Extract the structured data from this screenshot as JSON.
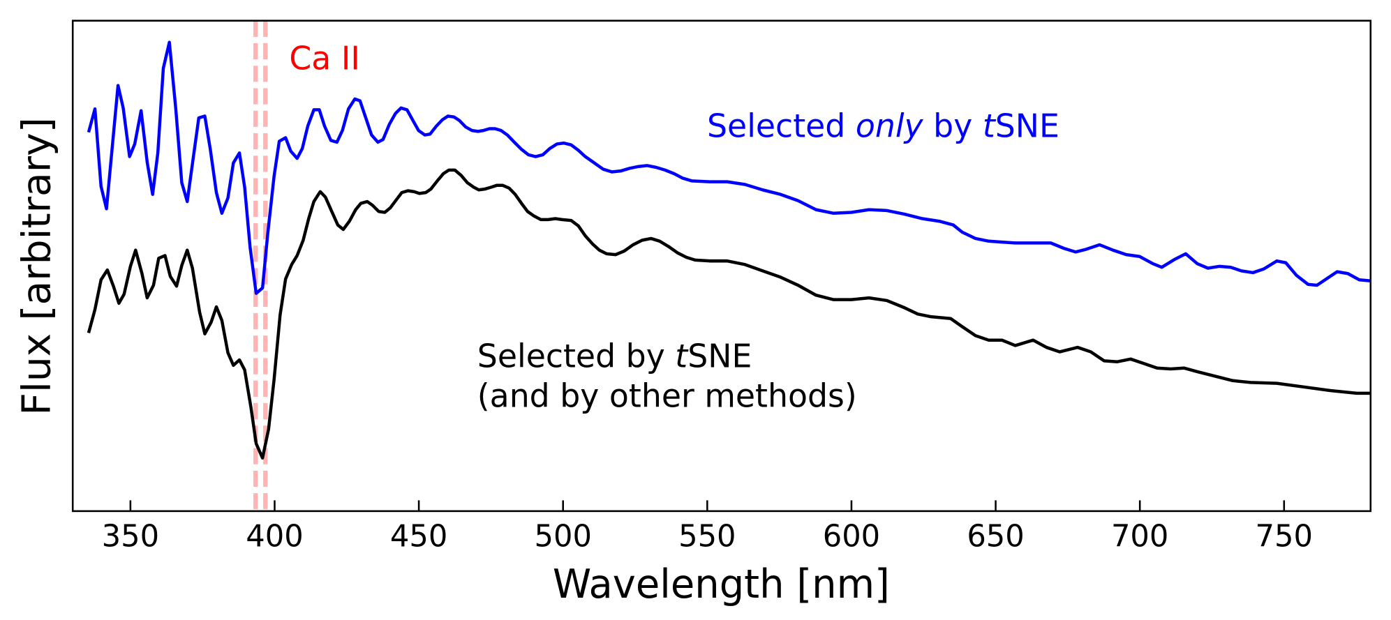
{
  "chart_data": {
    "type": "line",
    "xlabel": "Wavelength [nm]",
    "ylabel": "Flux [arbitrary]",
    "xlim": [
      330,
      780
    ],
    "xticks": [
      350,
      400,
      450,
      500,
      550,
      600,
      650,
      700,
      750
    ],
    "ylim": [
      0,
      545
    ],
    "grid": false,
    "vlines": [
      393.4,
      396.8
    ],
    "vline_color": "#ffb3b3",
    "vline_style": "dashed",
    "series": [
      {
        "color": "#0000ff",
        "x": [
          335.5,
          337.7,
          339.8,
          341.7,
          343.8,
          345.7,
          347.5,
          349.7,
          351.5,
          353.7,
          355.8,
          357.7,
          359.5,
          361.4,
          363.5,
          365.7,
          367.8,
          369.7,
          371.8,
          373.7,
          375.8,
          377.7,
          379.8,
          381.7,
          383.8,
          385.7,
          387.8,
          389.6,
          391.5,
          393.6,
          395.8,
          397.6,
          399.8,
          401.6,
          403.8,
          405.6,
          407.8,
          409.6,
          411.5,
          413.6,
          415.5,
          417.3,
          419.5,
          421.6,
          423.5,
          425.6,
          427.8,
          429.6,
          431.5,
          433.6,
          435.8,
          437.6,
          439.8,
          441.9,
          443.8,
          445.9,
          447.8,
          449.9,
          452.1,
          453.9,
          456.1,
          458.2,
          460.1,
          462.2,
          464.1,
          466.2,
          468.4,
          470.5,
          472.4,
          474.5,
          476.4,
          478.5,
          480.7,
          483.1,
          485.6,
          488.0,
          490.5,
          493.0,
          495.4,
          497.9,
          500.3,
          502.8,
          505.3,
          507.7,
          510.8,
          513.9,
          516.9,
          520.0,
          523.1,
          526.2,
          529.2,
          532.3,
          535.4,
          538.5,
          541.5,
          544.6,
          550.8,
          556.9,
          563.1,
          569.2,
          575.4,
          581.5,
          587.7,
          593.8,
          600.0,
          606.1,
          612.3,
          618.4,
          624.6,
          630.7,
          635.3,
          638.4,
          643.0,
          647.6,
          652.2,
          656.8,
          661.4,
          664.5,
          669.1,
          673.7,
          677.7,
          681.4,
          686.0,
          690.7,
          695.3,
          699.9,
          704.5,
          707.6,
          712.2,
          715.9,
          719.9,
          723.6,
          727.5,
          731.5,
          735.2,
          739.2,
          742.9,
          747.5,
          750.6,
          754.3,
          758.3,
          761.4,
          765.1,
          768.4,
          772.1,
          776.1,
          779.8
        ],
        "values": [
          421,
          447,
          361,
          336,
          408,
          473,
          448,
          394,
          408,
          445,
          388,
          352,
          398,
          492,
          521,
          448,
          365,
          344,
          393,
          437,
          439,
          402,
          354,
          331,
          348,
          387,
          398,
          360,
          293,
          242,
          248,
          308,
          372,
          411,
          415,
          400,
          392,
          403,
          428,
          446,
          446,
          428,
          412,
          410,
          423,
          447,
          458,
          456,
          438,
          418,
          410,
          413,
          430,
          442,
          448,
          446,
          435,
          423,
          418,
          419,
          428,
          435,
          439,
          438,
          434,
          427,
          423,
          422,
          423,
          425,
          425,
          423,
          418,
          410,
          402,
          396,
          394,
          396,
          403,
          408,
          409,
          407,
          401,
          394,
          387,
          380,
          377,
          378,
          381,
          383,
          384,
          382,
          379,
          375,
          370,
          367,
          366,
          366,
          363,
          357,
          352,
          345,
          335,
          331,
          332,
          335,
          334,
          330,
          325,
          322,
          318,
          310,
          303,
          300,
          299,
          298,
          298,
          298,
          298,
          292,
          288,
          291,
          296,
          290,
          285,
          283,
          275,
          271,
          280,
          286,
          275,
          270,
          272,
          271,
          267,
          265,
          269,
          278,
          276,
          262,
          252,
          251,
          259,
          266,
          264,
          257,
          256
        ]
      },
      {
        "color": "#000000",
        "x": [
          335.5,
          337.7,
          339.8,
          342.0,
          344.1,
          346.0,
          347.8,
          350.0,
          351.8,
          354.0,
          355.8,
          358.0,
          359.8,
          362.0,
          363.8,
          366.0,
          367.8,
          369.7,
          371.5,
          374.0,
          375.8,
          378.0,
          379.8,
          381.7,
          383.8,
          385.7,
          387.8,
          389.6,
          391.8,
          393.6,
          395.8,
          397.9,
          399.8,
          401.9,
          403.8,
          405.9,
          407.8,
          409.9,
          411.8,
          413.6,
          415.8,
          417.6,
          419.8,
          421.9,
          423.8,
          425.9,
          428.1,
          429.9,
          432.1,
          433.9,
          436.1,
          438.2,
          440.1,
          442.2,
          444.1,
          446.2,
          448.4,
          450.2,
          452.4,
          454.2,
          456.4,
          458.5,
          460.4,
          462.5,
          464.7,
          466.8,
          469.0,
          470.8,
          473.0,
          475.1,
          477.0,
          479.1,
          481.3,
          483.4,
          485.6,
          487.7,
          489.9,
          492.3,
          494.8,
          497.3,
          499.7,
          502.8,
          505.3,
          507.7,
          510.2,
          512.6,
          515.1,
          518.2,
          521.2,
          524.3,
          527.4,
          530.5,
          533.5,
          536.6,
          539.7,
          542.8,
          545.8,
          550.8,
          556.9,
          563.1,
          569.2,
          575.4,
          581.5,
          587.7,
          593.8,
          600.0,
          606.1,
          612.3,
          618.4,
          623.0,
          627.6,
          634.4,
          638.4,
          643.0,
          647.6,
          652.2,
          656.8,
          663.0,
          667.6,
          672.2,
          678.4,
          683.0,
          687.6,
          692.2,
          696.8,
          701.4,
          706.0,
          710.7,
          715.3,
          719.9,
          726.0,
          732.2,
          738.3,
          747.5,
          756.8,
          766.0,
          775.2,
          779.8
        ],
        "values": [
          198,
          224,
          257,
          268,
          250,
          231,
          241,
          272,
          290,
          264,
          237,
          251,
          281,
          284,
          261,
          250,
          273,
          290,
          270,
          221,
          197,
          210,
          227,
          212,
          176,
          162,
          168,
          157,
          115,
          75,
          59,
          91,
          146,
          218,
          258,
          274,
          284,
          301,
          325,
          344,
          355,
          349,
          333,
          318,
          313,
          322,
          335,
          342,
          344,
          340,
          333,
          332,
          337,
          346,
          354,
          356,
          355,
          353,
          354,
          358,
          367,
          375,
          379,
          379,
          373,
          365,
          360,
          357,
          358,
          360,
          362,
          362,
          359,
          352,
          342,
          333,
          328,
          324,
          324,
          325,
          324,
          323,
          317,
          306,
          297,
          290,
          286,
          285,
          289,
          296,
          301,
          303,
          300,
          294,
          287,
          282,
          279,
          278,
          278,
          274,
          267,
          260,
          251,
          240,
          235,
          235,
          237,
          234,
          226,
          219,
          216,
          214,
          205,
          195,
          190,
          190,
          184,
          190,
          182,
          177,
          182,
          177,
          167,
          166,
          169,
          164,
          159,
          158,
          159,
          155,
          150,
          145,
          143,
          142,
          138,
          134,
          131,
          131
        ]
      }
    ],
    "annotations": [
      {
        "color": "#ff0000",
        "lines": [
          [
            {
              "text": "Ca II"
            }
          ]
        ]
      },
      {
        "color": "#0000ff",
        "lines": [
          [
            {
              "text": "Selected "
            },
            {
              "text": "only",
              "italic": true
            },
            {
              "text": " by "
            },
            {
              "text": "t",
              "italic": true
            },
            {
              "text": "SNE"
            }
          ]
        ]
      },
      {
        "color": "#000000",
        "lines": [
          [
            {
              "text": "Selected by "
            },
            {
              "text": "t",
              "italic": true
            },
            {
              "text": "SNE"
            }
          ],
          [
            {
              "text": "(and by other methods)"
            }
          ]
        ]
      }
    ]
  }
}
